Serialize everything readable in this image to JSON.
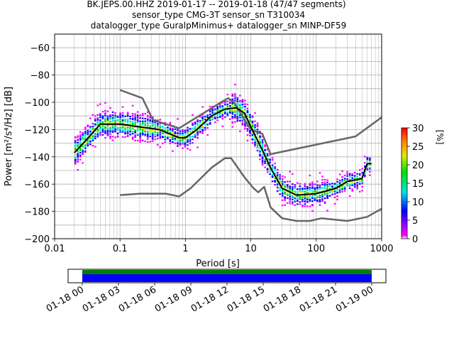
{
  "title": {
    "line1": "BK.JEPS.00.HHZ   2019-01-17 -- 2019-01-18  (47/47 segments)",
    "line2": "sensor_type CMG-3T sensor_sn T310034",
    "line3": "datalogger_type GuralpMinimus+ datalogger_sn MINP-DF59"
  },
  "chart_data": [
    {
      "type": "heatmap",
      "xlabel": "Period [s]",
      "ylabel": "Power [m²/s⁴/Hz] [dB]",
      "xscale": "log",
      "xlim": [
        0.01,
        1000
      ],
      "ylim": [
        -200,
        -50
      ],
      "x_ticks": [
        "0.01",
        "0.1",
        "1",
        "10",
        "100",
        "1000"
      ],
      "y_ticks": [
        "-60",
        "-80",
        "-100",
        "-120",
        "-140",
        "-160",
        "-180",
        "-200"
      ],
      "grid": true,
      "colorbar": {
        "label": "[%]",
        "range": [
          0,
          30
        ],
        "ticks": [
          "0",
          "5",
          "10",
          "15",
          "20",
          "25",
          "30"
        ]
      },
      "series": [
        {
          "name": "",
          "color": "#666666",
          "x": [
            0.1,
            0.22,
            0.32,
            0.8,
            3.5,
            4.5,
            5.5,
            10,
            15,
            20,
            400,
            1000
          ],
          "y": [
            -91,
            -97,
            -113,
            -119,
            -100,
            -97,
            -100,
            -120,
            -123,
            -138,
            -125,
            -111
          ]
        },
        {
          "name": "",
          "color": "#666666",
          "x": [
            0.1,
            0.2,
            0.5,
            0.8,
            1.2,
            2.5,
            4,
            5,
            8,
            11,
            13,
            16,
            20,
            30,
            50,
            80,
            120,
            300,
            600,
            1000
          ],
          "y": [
            -168,
            -167,
            -167,
            -169,
            -163,
            -148,
            -141,
            -141,
            -155,
            -163,
            -166,
            -162,
            -177,
            -185,
            -187,
            -187,
            -185,
            -187,
            -184,
            -178
          ]
        },
        {
          "name": "",
          "color": "#000000",
          "x": [
            0.02,
            0.03,
            0.05,
            0.1,
            0.2,
            0.4,
            0.8,
            1,
            1.5,
            2.5,
            4,
            6,
            8,
            10,
            15,
            20,
            30,
            50,
            100,
            200,
            300,
            500,
            600,
            700
          ],
          "y": [
            -137,
            -128,
            -116,
            -116,
            -118,
            -120,
            -126,
            -126,
            -120,
            -110,
            -105,
            -104,
            -108,
            -118,
            -135,
            -148,
            -163,
            -168,
            -167,
            -163,
            -158,
            -156,
            -145,
            -145
          ]
        }
      ]
    },
    {
      "type": "bar",
      "description": "data availability timeline",
      "categories": [
        "01-18 00",
        "01-18 03",
        "01-18 06",
        "01-18 09",
        "01-18 12",
        "01-18 15",
        "01-18 18",
        "01-18 21",
        "01-19 00"
      ],
      "bands": [
        {
          "name": "",
          "color": "#008000"
        },
        {
          "name": "",
          "color": "#0000ff"
        }
      ]
    }
  ]
}
